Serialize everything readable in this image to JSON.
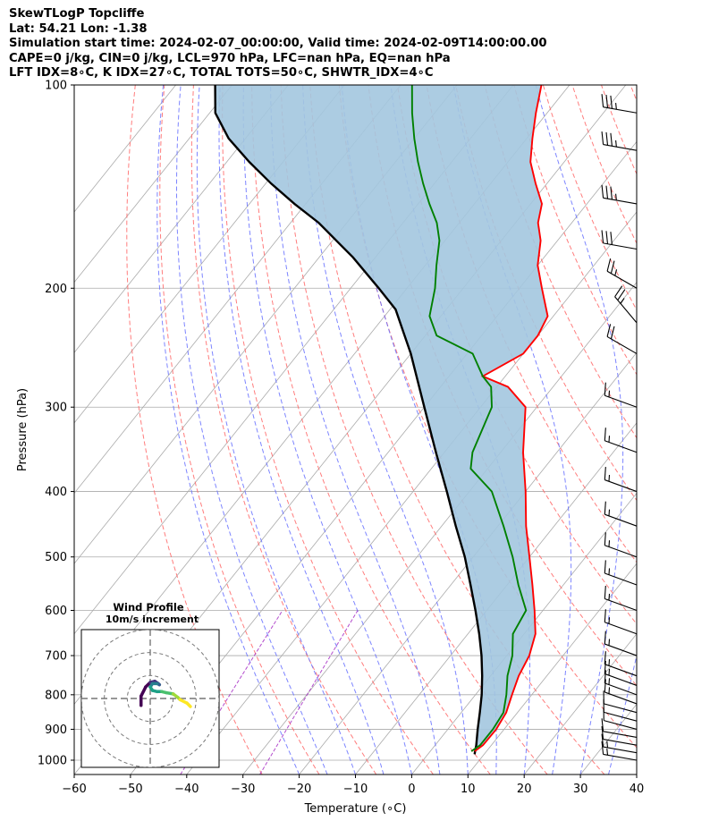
{
  "header": {
    "line1": "SkewTLogP Topcliffe",
    "line2": "Lat: 54.21   Lon: -1.38",
    "line3": "Simulation start time: 2024-02-07_00:00:00, Valid time: 2024-02-09T14:00:00.00",
    "line4": "CAPE=0 j/kg, CIN=0 j/kg, LCL=970 hPa, LFC=nan hPa, EQ=nan hPa",
    "line5": "LFT IDX=8∘C, K IDX=27∘C, TOTAL TOTS=50∘C, SHWTR_IDX=4∘C"
  },
  "chart_data": {
    "type": "skewt-logp",
    "xlabel": "Temperature (∘C)",
    "ylabel": "Pressure (hPa)",
    "xlim": [
      -60,
      40
    ],
    "ylim": [
      1050,
      100
    ],
    "x_ticks": [
      -60,
      -50,
      -40,
      -30,
      -20,
      -10,
      0,
      10,
      20,
      30,
      40
    ],
    "y_ticks": [
      100,
      200,
      300,
      400,
      500,
      600,
      700,
      800,
      900,
      1000
    ],
    "grid": true,
    "colors": {
      "temperature": "#ff0000",
      "dewpoint": "#008000",
      "parcel": "#000000",
      "cape_fill": "#a3c6df",
      "dry_adiabats": "#ff6666",
      "moist_adiabats": "#6670ff",
      "mixing_ratio": "#a020c0",
      "isotherms": "#aaaaaa"
    },
    "series": [
      {
        "name": "Temperature",
        "points": [
          [
            7.9,
            970
          ],
          [
            8.5,
            950
          ],
          [
            8.6,
            900
          ],
          [
            8.0,
            850
          ],
          [
            6.5,
            800
          ],
          [
            5.0,
            750
          ],
          [
            4.0,
            700
          ],
          [
            2.0,
            650
          ],
          [
            -1.5,
            600
          ],
          [
            -5.5,
            550
          ],
          [
            -10.0,
            500
          ],
          [
            -15.0,
            450
          ],
          [
            -20.0,
            400
          ],
          [
            -26.0,
            350
          ],
          [
            -32.0,
            300
          ],
          [
            -38.0,
            280
          ],
          [
            -44.0,
            270
          ],
          [
            -40.0,
            250
          ],
          [
            -40.0,
            235
          ],
          [
            -41.0,
            220
          ],
          [
            -46.0,
            200
          ],
          [
            -50.0,
            185
          ],
          [
            -53.0,
            170
          ],
          [
            -56.0,
            160
          ],
          [
            -58.0,
            150
          ],
          [
            -62.0,
            140
          ],
          [
            -66.0,
            130
          ],
          [
            -69.0,
            120
          ],
          [
            -72.0,
            110
          ],
          [
            -75.0,
            100
          ]
        ]
      },
      {
        "name": "Dewpoint",
        "points": [
          [
            7.3,
            970
          ],
          [
            8.0,
            950
          ],
          [
            8.0,
            900
          ],
          [
            7.5,
            850
          ],
          [
            5.5,
            800
          ],
          [
            3.0,
            750
          ],
          [
            1.0,
            700
          ],
          [
            -2.0,
            650
          ],
          [
            -3.0,
            600
          ],
          [
            -8.0,
            550
          ],
          [
            -13.0,
            500
          ],
          [
            -19.0,
            450
          ],
          [
            -26.0,
            400
          ],
          [
            -33.0,
            370
          ],
          [
            -35.0,
            350
          ],
          [
            -38.0,
            300
          ],
          [
            -41.0,
            280
          ],
          [
            -44.0,
            270
          ],
          [
            -49.0,
            250
          ],
          [
            -58.0,
            235
          ],
          [
            -62.0,
            220
          ],
          [
            -65.0,
            200
          ],
          [
            -68.0,
            185
          ],
          [
            -71.0,
            170
          ],
          [
            -74.0,
            160
          ],
          [
            -78.0,
            150
          ],
          [
            -82.0,
            140
          ],
          [
            -86.0,
            130
          ],
          [
            -90.0,
            120
          ],
          [
            -94.0,
            110
          ],
          [
            -98.0,
            100
          ]
        ]
      },
      {
        "name": "Parcel",
        "points": [
          [
            8.3,
            980
          ],
          [
            7.3,
            950
          ],
          [
            5.3,
            900
          ],
          [
            3.3,
            850
          ],
          [
            1.1,
            800
          ],
          [
            -1.5,
            750
          ],
          [
            -4.5,
            700
          ],
          [
            -8.0,
            650
          ],
          [
            -12.0,
            600
          ],
          [
            -16.5,
            550
          ],
          [
            -21.5,
            500
          ],
          [
            -27.5,
            450
          ],
          [
            -34.0,
            400
          ],
          [
            -41.5,
            350
          ],
          [
            -50.0,
            300
          ],
          [
            -60.0,
            250
          ],
          [
            -69.0,
            215
          ],
          [
            -75.0,
            200
          ],
          [
            -84.0,
            180
          ],
          [
            -95.0,
            160
          ],
          [
            -102.0,
            150
          ],
          [
            -109.0,
            140
          ],
          [
            -116.0,
            130
          ],
          [
            -123.0,
            120
          ],
          [
            -129.0,
            110
          ],
          [
            -133.0,
            100
          ]
        ]
      }
    ],
    "wind_barbs": {
      "side": "right",
      "pressures": [
        1000,
        975,
        950,
        925,
        900,
        875,
        850,
        825,
        800,
        775,
        750,
        700,
        650,
        600,
        550,
        500,
        450,
        400,
        350,
        300,
        250,
        225,
        200,
        175,
        150,
        125,
        110
      ],
      "speeds_kt": [
        15,
        15,
        10,
        10,
        10,
        10,
        10,
        15,
        15,
        15,
        15,
        15,
        15,
        15,
        15,
        15,
        15,
        15,
        15,
        15,
        20,
        25,
        25,
        30,
        35,
        35,
        35
      ],
      "directions_deg": [
        280,
        280,
        280,
        280,
        285,
        285,
        285,
        290,
        290,
        290,
        290,
        290,
        290,
        290,
        290,
        290,
        290,
        290,
        290,
        290,
        300,
        320,
        300,
        280,
        280,
        280,
        280
      ]
    },
    "inset": {
      "title": "Wind Profile",
      "subtitle": "10m/s increment",
      "type": "hodograph",
      "rings": [
        10,
        20,
        30
      ],
      "range": 30,
      "trace": [
        [
          -4,
          -3
        ],
        [
          -4,
          1
        ],
        [
          -2,
          5
        ],
        [
          0,
          7
        ],
        [
          2,
          7.5
        ],
        [
          3.5,
          6.5
        ],
        [
          4,
          6
        ],
        [
          3,
          6.5
        ],
        [
          1,
          6.5
        ],
        [
          0,
          5
        ],
        [
          1,
          3.5
        ],
        [
          3,
          3
        ],
        [
          5,
          3
        ],
        [
          7,
          2.5
        ],
        [
          10,
          2
        ],
        [
          12,
          0.5
        ],
        [
          13,
          -0.5
        ],
        [
          16,
          -2
        ],
        [
          17.5,
          -3.5
        ]
      ],
      "trace_colors": [
        "#440154",
        "#46327e",
        "#365c8d",
        "#277f8e",
        "#1fa187",
        "#4ac16d",
        "#a0da39",
        "#fde725"
      ]
    }
  }
}
